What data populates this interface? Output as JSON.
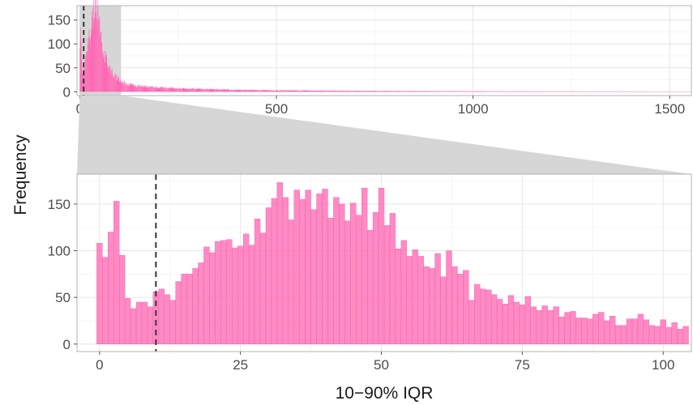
{
  "chart_data": {
    "type": "bar",
    "ylabel": "Frequency",
    "xlabel": "10−90% IQR",
    "bar_color": "#ff69b4",
    "zoom_band_color": "#d6d6d6",
    "median_line_color": "#333333",
    "median_line_x": 10,
    "overview": {
      "xlim": [
        -7,
        1555
      ],
      "ylim": [
        -8,
        180
      ],
      "x_ticks": [
        0,
        500,
        1000,
        1500
      ],
      "x_tick_labels": [
        "0",
        "500",
        "1000",
        "1500"
      ],
      "y_ticks": [
        0,
        50,
        100,
        150
      ],
      "y_tick_labels": [
        "0",
        "50",
        "100",
        "150"
      ],
      "zoom_range": [
        0,
        105
      ],
      "bin_width": 1,
      "profile_x": [
        0,
        1,
        2,
        3,
        4,
        5,
        6,
        8,
        10,
        14,
        18,
        22,
        26,
        30,
        34,
        38,
        42,
        46,
        50,
        55,
        60,
        65,
        70,
        75,
        80,
        90,
        100,
        110,
        120,
        140,
        160,
        180,
        200,
        250,
        300,
        350,
        400,
        500,
        600,
        700,
        800,
        1000,
        1200,
        1550
      ],
      "profile_y": [
        108,
        95,
        120,
        155,
        95,
        60,
        40,
        45,
        50,
        58,
        90,
        105,
        115,
        135,
        160,
        175,
        168,
        150,
        142,
        105,
        88,
        72,
        58,
        50,
        42,
        32,
        26,
        20,
        16,
        13,
        11,
        10,
        9,
        7,
        6,
        5,
        4,
        3,
        2.5,
        2,
        1.6,
        1,
        0.7,
        0.4
      ]
    },
    "detail": {
      "xlim": [
        -4,
        105
      ],
      "ylim": [
        -8,
        182
      ],
      "x_ticks": [
        0,
        25,
        50,
        75,
        100
      ],
      "x_tick_labels": [
        "0",
        "25",
        "50",
        "75",
        "100"
      ],
      "y_ticks": [
        0,
        50,
        100,
        150
      ],
      "y_tick_labels": [
        "0",
        "50",
        "100",
        "150"
      ],
      "bin_start": -0.5,
      "bin_width": 1,
      "values": [
        108,
        93,
        120,
        153,
        95,
        49,
        38,
        45,
        45,
        40,
        56,
        59,
        53,
        47,
        67,
        75,
        75,
        81,
        87,
        104,
        98,
        110,
        111,
        112,
        103,
        105,
        118,
        106,
        134,
        119,
        146,
        156,
        173,
        157,
        133,
        165,
        155,
        165,
        144,
        161,
        166,
        135,
        157,
        150,
        132,
        151,
        138,
        167,
        122,
        141,
        167,
        127,
        140,
        102,
        111,
        94,
        101,
        94,
        83,
        81,
        97,
        72,
        100,
        83,
        75,
        79,
        47,
        64,
        59,
        58,
        53,
        48,
        43,
        52,
        45,
        42,
        51,
        40,
        36,
        41,
        36,
        40,
        29,
        34,
        35,
        28,
        28,
        27,
        32,
        34,
        25,
        30,
        20,
        20,
        27,
        27,
        32,
        26,
        20,
        19,
        26,
        18,
        23,
        16,
        19
      ]
    }
  }
}
